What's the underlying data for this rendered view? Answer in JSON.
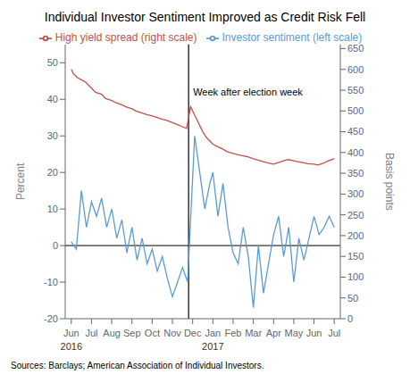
{
  "chart_data": {
    "type": "line",
    "title": "Individual Investor Sentiment Improved as Credit Risk Fell",
    "ylabel": "Percent",
    "y2label": "Basis points",
    "source": "Sources: Barclays; American Association of Individual Investors.",
    "grid": false,
    "legend": "top",
    "xlim": [
      -0.3,
      13.3
    ],
    "xticks": [
      {
        "value": 0,
        "label": "Jun"
      },
      {
        "value": 1,
        "label": "Jul"
      },
      {
        "value": 2,
        "label": "Aug"
      },
      {
        "value": 3,
        "label": "Sep"
      },
      {
        "value": 4,
        "label": "Oct"
      },
      {
        "value": 5,
        "label": "Nov"
      },
      {
        "value": 6,
        "label": "Dec"
      },
      {
        "value": 7,
        "label": "Jan"
      },
      {
        "value": 8,
        "label": "Feb"
      },
      {
        "value": 9,
        "label": "Mar"
      },
      {
        "value": 10,
        "label": "Apr"
      },
      {
        "value": 11,
        "label": "May"
      },
      {
        "value": 12,
        "label": "Jun"
      },
      {
        "value": 13,
        "label": "Jul"
      }
    ],
    "year_labels": [
      {
        "text": "2016",
        "x": 0
      },
      {
        "text": "2017",
        "x": 7
      }
    ],
    "ylim": [
      -20,
      55
    ],
    "yticks": [
      -20,
      -10,
      0,
      10,
      20,
      30,
      40,
      50
    ],
    "y2lim": [
      0,
      660
    ],
    "y2ticks": [
      0,
      50,
      100,
      150,
      200,
      250,
      300,
      350,
      400,
      450,
      500,
      550,
      600,
      650
    ],
    "hlines": [
      0
    ],
    "annotations": [
      {
        "text": "Week after election week",
        "x": 5.8,
        "y": 42
      }
    ],
    "series": [
      {
        "name": "Investor sentiment (left scale)",
        "color": "#5b9bd5",
        "axis": "y",
        "x": [
          0.0,
          0.25,
          0.5,
          0.75,
          1.0,
          1.25,
          1.5,
          1.75,
          2.0,
          2.25,
          2.5,
          2.75,
          3.0,
          3.25,
          3.5,
          3.75,
          4.0,
          4.25,
          4.5,
          4.75,
          5.0,
          5.25,
          5.5,
          5.75,
          6.1,
          6.35,
          6.6,
          6.85,
          7.0,
          7.25,
          7.5,
          7.75,
          8.0,
          8.25,
          8.5,
          8.75,
          9.0,
          9.25,
          9.5,
          9.75,
          10.0,
          10.25,
          10.5,
          10.75,
          11.0,
          11.25,
          11.5,
          11.75,
          12.0,
          12.25,
          12.5,
          12.75,
          13.0
        ],
        "values": [
          1,
          -1,
          15,
          5,
          12,
          8,
          13,
          5,
          10,
          2,
          7,
          -2,
          5,
          -4,
          2,
          -5,
          -1,
          -7,
          -3,
          -9,
          -14,
          -10,
          -6,
          -10,
          30,
          20,
          10,
          17,
          20,
          8,
          17,
          5,
          -2,
          -5,
          5,
          -3,
          -17,
          0,
          -13,
          -5,
          3,
          8,
          -3,
          5,
          -10,
          2,
          -4,
          2,
          8,
          3,
          5,
          8,
          5
        ]
      },
      {
        "name": "High yield spread (right scale)",
        "color": "#c0504d",
        "axis": "y2",
        "x": [
          0.0,
          0.1,
          0.3,
          0.5,
          0.7,
          1.0,
          1.2,
          1.5,
          1.7,
          2.0,
          2.2,
          2.5,
          2.7,
          3.0,
          3.2,
          3.5,
          3.7,
          4.0,
          4.2,
          4.5,
          4.7,
          5.0,
          5.2,
          5.5,
          5.7,
          5.9,
          6.1,
          6.3,
          6.5,
          6.7,
          7.0,
          7.2,
          7.5,
          7.7,
          8.0,
          8.2,
          8.5,
          8.7,
          9.0,
          9.2,
          9.5,
          9.7,
          10.0,
          10.2,
          10.5,
          10.7,
          11.0,
          11.2,
          11.5,
          11.7,
          12.0,
          12.2,
          12.5,
          12.7,
          13.0
        ],
        "values": [
          600,
          590,
          580,
          575,
          570,
          555,
          545,
          540,
          530,
          525,
          520,
          515,
          510,
          505,
          500,
          495,
          492,
          488,
          485,
          480,
          478,
          472,
          468,
          462,
          458,
          510,
          490,
          470,
          450,
          435,
          420,
          415,
          408,
          402,
          398,
          395,
          392,
          390,
          385,
          382,
          378,
          375,
          372,
          375,
          380,
          383,
          380,
          378,
          375,
          373,
          372,
          370,
          375,
          380,
          385
        ]
      }
    ]
  }
}
